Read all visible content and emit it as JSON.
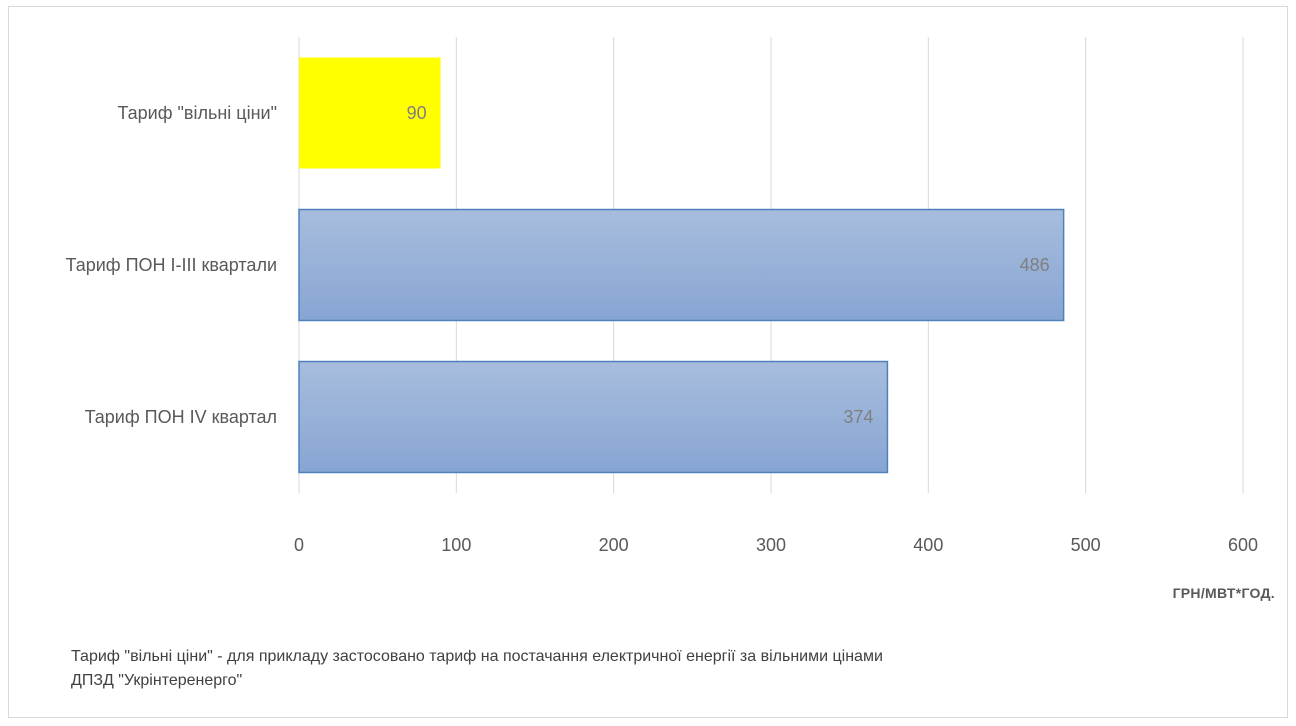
{
  "chart_data": {
    "type": "bar",
    "orientation": "horizontal",
    "categories": [
      "Тариф \"вільні ціни\"",
      "Тариф ПОН I-III квартали",
      "Тариф ПОН IV квартал"
    ],
    "values": [
      90,
      486,
      374
    ],
    "data_labels": [
      "90",
      "486",
      "374"
    ],
    "bar_colors": [
      "#ffff00",
      "#95b3d7",
      "#95b3d7"
    ],
    "bar_border_colors": [
      "#ffff00",
      "#4f81bd",
      "#4f81bd"
    ],
    "xlim": [
      0,
      600
    ],
    "xticks": [
      0,
      100,
      200,
      300,
      400,
      500,
      600
    ],
    "xtick_labels": [
      "0",
      "100",
      "200",
      "300",
      "400",
      "500",
      "600"
    ],
    "xlabel": "ГРН/МВТ*ГОД.",
    "ylabel": "",
    "title": "",
    "grid": true,
    "legend": "none"
  },
  "footnote": {
    "line1": "Тариф \"вільні ціни\" - для прикладу застосовано тариф на постачання електричної енергії за вільними цінами",
    "line2": "ДПЗД \"Укрінтеренерго\""
  }
}
